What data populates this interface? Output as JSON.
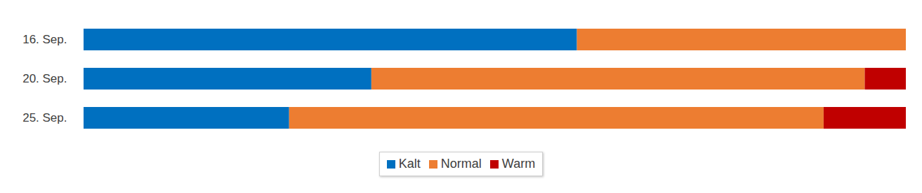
{
  "chart_data": {
    "type": "bar",
    "orientation": "horizontal",
    "stacked": true,
    "categories": [
      "16. Sep.",
      "20. Sep.",
      "25. Sep."
    ],
    "series": [
      {
        "name": "Kalt",
        "color": "#0070C0",
        "values": [
          60,
          35,
          25
        ]
      },
      {
        "name": "Normal",
        "color": "#ED7D31",
        "values": [
          40,
          60,
          65
        ]
      },
      {
        "name": "Warm",
        "color": "#C00000",
        "values": [
          0,
          5,
          10
        ]
      }
    ],
    "xlim": [
      0,
      100
    ],
    "tick_labels": "y",
    "legend": "bottom"
  }
}
